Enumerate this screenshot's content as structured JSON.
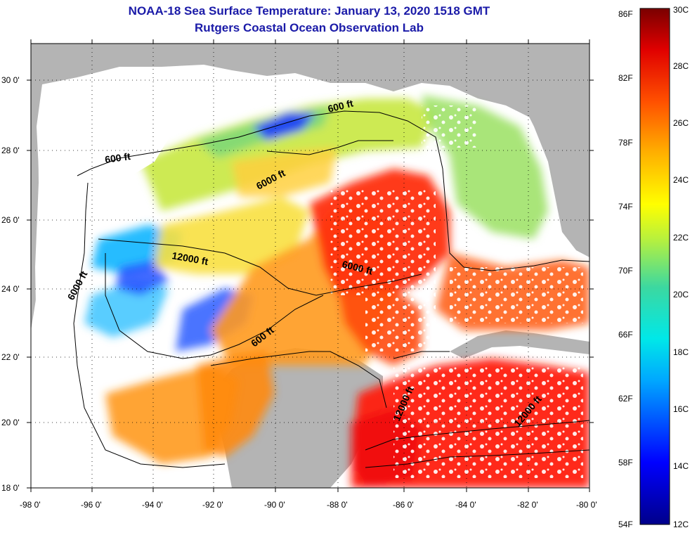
{
  "header": {
    "title": "NOAA-18 Sea Surface Temperature:  January 13, 2020 1518 GMT",
    "subtitle": "Rutgers Coastal Ocean Observation Lab"
  },
  "axes": {
    "lat_ticks": [
      "30 0'",
      "28 0'",
      "26 0'",
      "24 0'",
      "22 0'",
      "20 0'",
      "18 0'"
    ],
    "lon_ticks": [
      "-98 0'",
      "-96 0'",
      "-94 0'",
      "-92 0'",
      "-90 0'",
      "-88 0'",
      "-86 0'",
      "-84 0'",
      "-82 0'",
      "-80 0'"
    ]
  },
  "contours": {
    "labels": [
      "600 ft",
      "600 ft",
      "6000 ft",
      "12000 ft",
      "6000 ft",
      "6000 ft",
      "600 ft",
      "12000 ft",
      "12000 ft"
    ]
  },
  "colorbar": {
    "fahrenheit": [
      "86F",
      "82F",
      "78F",
      "74F",
      "70F",
      "66F",
      "62F",
      "58F",
      "54F"
    ],
    "celsius": [
      "30C",
      "28C",
      "26C",
      "24C",
      "22C",
      "20C",
      "18C",
      "16C",
      "14C",
      "12C"
    ]
  },
  "colors": {
    "land": "#b4b4b4",
    "cloud": "#ffffff",
    "title": "#1a1aa8"
  }
}
